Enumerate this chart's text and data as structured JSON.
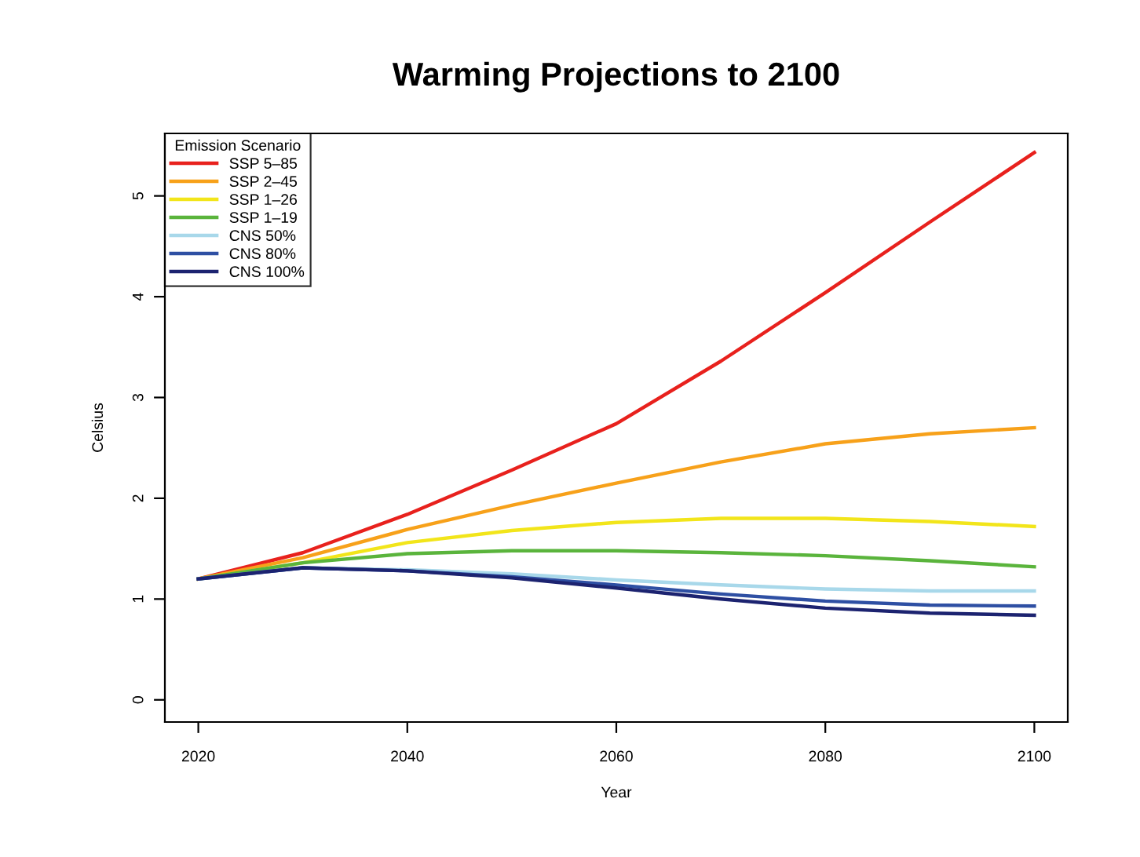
{
  "chart_data": {
    "type": "line",
    "title": "Warming Projections to 2100",
    "xlabel": "Year",
    "ylabel": "Celsius",
    "legend_title": "Emission Scenario",
    "legend": "top left",
    "grid": false,
    "marker": "none",
    "line_style": "solid",
    "x": [
      2020,
      2030,
      2040,
      2050,
      2060,
      2070,
      2080,
      2090,
      2100
    ],
    "xlim": [
      2016.8,
      2103.2
    ],
    "xticks": [
      2020,
      2040,
      2060,
      2080,
      2100
    ],
    "ylim": [
      -0.22,
      5.62
    ],
    "yticks": [
      0,
      1,
      2,
      3,
      4,
      5
    ],
    "series": [
      {
        "name": "SSP 5–85",
        "color": "#e8211d",
        "values": [
          1.2,
          1.46,
          1.84,
          2.28,
          2.74,
          3.36,
          4.04,
          4.74,
          5.43
        ]
      },
      {
        "name": "SSP 2–45",
        "color": "#f7a11a",
        "values": [
          1.2,
          1.41,
          1.69,
          1.93,
          2.15,
          2.36,
          2.54,
          2.64,
          2.7
        ]
      },
      {
        "name": "SSP 1–26",
        "color": "#f2e51a",
        "values": [
          1.2,
          1.36,
          1.56,
          1.68,
          1.76,
          1.8,
          1.8,
          1.77,
          1.72
        ]
      },
      {
        "name": "SSP 1–19",
        "color": "#5ab43c",
        "values": [
          1.2,
          1.36,
          1.45,
          1.48,
          1.48,
          1.46,
          1.43,
          1.38,
          1.32
        ]
      },
      {
        "name": "CNS 50%",
        "color": "#a8d8ea",
        "values": [
          1.2,
          1.31,
          1.29,
          1.25,
          1.19,
          1.14,
          1.1,
          1.08,
          1.08
        ]
      },
      {
        "name": "CNS 80%",
        "color": "#2e4fa3",
        "values": [
          1.2,
          1.31,
          1.28,
          1.22,
          1.14,
          1.05,
          0.98,
          0.94,
          0.93
        ]
      },
      {
        "name": "CNS 100%",
        "color": "#1c2370",
        "values": [
          1.2,
          1.31,
          1.28,
          1.21,
          1.11,
          1.0,
          0.91,
          0.86,
          0.84
        ]
      }
    ]
  }
}
